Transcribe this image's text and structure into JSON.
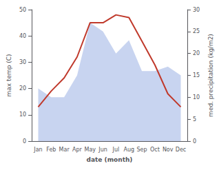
{
  "chart_data": {
    "type": "line",
    "xlabel": "date (month)",
    "ylabel": "max temp (C)",
    "y2label": "med. precipitation (kg/m2)",
    "categories": [
      "Jan",
      "Feb",
      "Mar",
      "Apr",
      "May",
      "Jun",
      "Jul",
      "Aug",
      "Sep",
      "Oct",
      "Nov",
      "Dec"
    ],
    "series": [
      {
        "type": "area",
        "axis": "y2",
        "color": "#c8d4f0",
        "values": [
          12,
          10,
          10,
          15,
          27,
          25,
          20,
          23,
          16,
          16,
          17,
          15
        ]
      },
      {
        "type": "line",
        "color": "#c0392b",
        "values": [
          13,
          19,
          24,
          32,
          45,
          45,
          48,
          47,
          38,
          29,
          18,
          13
        ]
      }
    ],
    "ylim": [
      0,
      50
    ],
    "yticks": [
      0,
      10,
      20,
      30,
      40,
      50
    ],
    "y2lim": [
      0,
      30
    ],
    "y2ticks": [
      0,
      5,
      10,
      15,
      20,
      25,
      30
    ],
    "grid": false
  }
}
